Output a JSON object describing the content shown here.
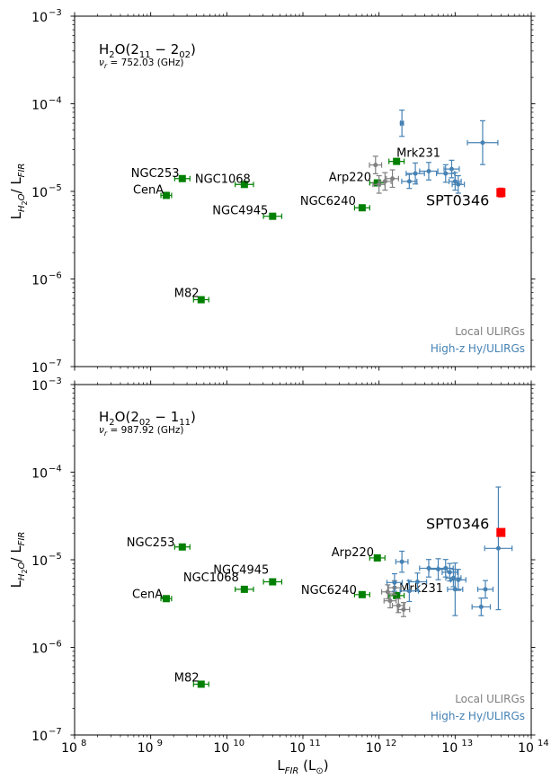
{
  "figure": {
    "xlabel": "L_FIR (L⊙)",
    "ylabel": "L_H2O/ L_FIR",
    "x_ticks": [
      {
        "exp": "8",
        "value": 100000000.0
      },
      {
        "exp": "9",
        "value": 1000000000.0
      },
      {
        "exp": "10",
        "value": 10000000000.0
      },
      {
        "exp": "11",
        "value": 100000000000.0
      },
      {
        "exp": "12",
        "value": 1000000000000.0
      },
      {
        "exp": "13",
        "value": 10000000000000.0
      },
      {
        "exp": "14",
        "value": 100000000000000.0
      }
    ],
    "y_ticks": [
      {
        "exp": "−7",
        "value": 1e-07
      },
      {
        "exp": "−6",
        "value": 1e-06
      },
      {
        "exp": "−5",
        "value": 1e-05
      },
      {
        "exp": "−4",
        "value": 0.0001
      },
      {
        "exp": "−3",
        "value": 0.001
      }
    ],
    "legend": {
      "local": "Local ULIRGs",
      "highz": "High-z Hy/ULIRGs"
    },
    "colors": {
      "nearby": "#008000",
      "local": "#808080",
      "highz": "#4682b4",
      "spt": "#ff0000"
    }
  },
  "chart_data": [
    {
      "type": "scatter",
      "title": "H2O(2_11 − 2_02)",
      "subtitle": "ν_r = 752.03 (GHz)",
      "x_scale": "log",
      "y_scale": "log",
      "xlim": [
        100000000.0,
        100000000000000.0
      ],
      "ylim": [
        1e-07,
        0.001
      ],
      "grid": false,
      "legend_position": "bottom-right",
      "series": [
        {
          "key": "nearby",
          "points": [
            {
              "label": "NGC253",
              "x": 2600000000.0,
              "y": 1.4e-05,
              "xerr": 0.1
            },
            {
              "label": "CenA",
              "x": 1600000000.0,
              "y": 9e-06,
              "xerr": 0.07
            },
            {
              "label": "NGC1068",
              "x": 17000000000.0,
              "y": 1.2e-05,
              "xerr": 0.12
            },
            {
              "label": "NGC4945",
              "x": 40000000000.0,
              "y": 5.2e-06,
              "xerr": 0.12
            },
            {
              "label": "M82",
              "x": 4600000000.0,
              "y": 5.8e-07,
              "xerr": 0.1
            },
            {
              "label": "NGC6240",
              "x": 600000000000.0,
              "y": 6.5e-06,
              "xerr": 0.1
            },
            {
              "label": "Arp220",
              "x": 950000000000.0,
              "y": 1.25e-05,
              "xerr": 0.1
            },
            {
              "label": "Mrk231",
              "x": 1700000000000.0,
              "y": 2.2e-05,
              "xerr": 0.1
            }
          ]
        },
        {
          "key": "local",
          "name": "Local ULIRGs",
          "points": [
            {
              "x": 900000000000.0,
              "y": 2e-05,
              "xerr": 0.08,
              "yerr": 0.1
            },
            {
              "x": 1200000000000.0,
              "y": 1.3e-05,
              "xerr": 0.08,
              "yerr": 0.1
            },
            {
              "x": 1500000000000.0,
              "y": 1.4e-05,
              "xerr": 0.08,
              "yerr": 0.1
            },
            {
              "x": 1000000000000.0,
              "y": 1.2e-05,
              "xerr": 0.08,
              "yerr": 0.1
            }
          ]
        },
        {
          "key": "highz",
          "name": "High-z Hy/ULIRGs",
          "points": [
            {
              "x": 2000000000000.0,
              "y": 6e-05,
              "xerr": 0.02,
              "yerr": 0.15
            },
            {
              "x": 3000000000000.0,
              "y": 1.6e-05,
              "xerr": 0.12,
              "yerr": 0.12
            },
            {
              "x": 4500000000000.0,
              "y": 1.7e-05,
              "xerr": 0.12,
              "yerr": 0.1
            },
            {
              "x": 7500000000000.0,
              "y": 1.6e-05,
              "xerr": 0.12,
              "yerr": 0.1
            },
            {
              "x": 9000000000000.0,
              "y": 1.8e-05,
              "xerr": 0.1,
              "yerr": 0.1
            },
            {
              "x": 10000000000000.0,
              "y": 1.3e-05,
              "xerr": 0.08,
              "yerr": 0.1
            },
            {
              "x": 11000000000000.0,
              "y": 1.2e-05,
              "xerr": 0.08,
              "yerr": 0.1
            },
            {
              "x": 23000000000000.0,
              "y": 3.6e-05,
              "xerr": 0.2,
              "yerr": 0.25
            },
            {
              "x": 2500000000000.0,
              "y": 1.3e-05,
              "xerr": 0.1,
              "yerr": 0.08
            }
          ]
        },
        {
          "key": "spt",
          "points": [
            {
              "label": "SPT0346",
              "x": 40000000000000.0,
              "y": 9.7e-06,
              "xerr": 0,
              "yerr": 0.05
            }
          ]
        }
      ]
    },
    {
      "type": "scatter",
      "title": "H2O(2_02 − 1_11)",
      "subtitle": "ν_r = 987.92 (GHz)",
      "x_scale": "log",
      "y_scale": "log",
      "xlim": [
        100000000.0,
        100000000000000.0
      ],
      "ylim": [
        1e-07,
        0.001
      ],
      "grid": false,
      "legend_position": "bottom-right",
      "series": [
        {
          "key": "nearby",
          "points": [
            {
              "label": "NGC253",
              "x": 2600000000.0,
              "y": 1.4e-05,
              "xerr": 0.1
            },
            {
              "label": "CenA",
              "x": 1600000000.0,
              "y": 3.6e-06,
              "xerr": 0.07
            },
            {
              "label": "NGC1068",
              "x": 17000000000.0,
              "y": 4.6e-06,
              "xerr": 0.12
            },
            {
              "label": "NGC4945",
              "x": 40000000000.0,
              "y": 5.6e-06,
              "xerr": 0.12
            },
            {
              "label": "M82",
              "x": 4600000000.0,
              "y": 3.8e-07,
              "xerr": 0.1
            },
            {
              "label": "NGC6240",
              "x": 600000000000.0,
              "y": 4e-06,
              "xerr": 0.1
            },
            {
              "label": "Arp220",
              "x": 950000000000.0,
              "y": 1.05e-05,
              "xerr": 0.1
            },
            {
              "label": "Mrk231",
              "x": 1700000000000.0,
              "y": 3.9e-06,
              "xerr": 0.1
            }
          ]
        },
        {
          "key": "local",
          "name": "Local ULIRGs",
          "points": [
            {
              "x": 1300000000000.0,
              "y": 4.3e-06,
              "xerr": 0.08,
              "yerr": 0.08
            },
            {
              "x": 1800000000000.0,
              "y": 3e-06,
              "xerr": 0.08,
              "yerr": 0.08
            },
            {
              "x": 2100000000000.0,
              "y": 2.7e-06,
              "xerr": 0.08,
              "yerr": 0.08
            },
            {
              "x": 1600000000000.0,
              "y": 4.8e-06,
              "xerr": 0.08,
              "yerr": 0.08
            },
            {
              "x": 1400000000000.0,
              "y": 3.4e-06,
              "xerr": 0.08,
              "yerr": 0.08
            }
          ]
        },
        {
          "key": "highz",
          "name": "High-z Hy/ULIRGs",
          "points": [
            {
              "x": 2000000000000.0,
              "y": 9.5e-06,
              "xerr": 0.08,
              "yerr": 0.12
            },
            {
              "x": 1600000000000.0,
              "y": 5.5e-06,
              "xerr": 0.1,
              "yerr": 0.1
            },
            {
              "x": 2500000000000.0,
              "y": 4.4e-06,
              "xerr": 0.12,
              "yerr": 0.12
            },
            {
              "x": 3200000000000.0,
              "y": 5.6e-06,
              "xerr": 0.12,
              "yerr": 0.1
            },
            {
              "x": 4500000000000.0,
              "y": 8e-06,
              "xerr": 0.12,
              "yerr": 0.1
            },
            {
              "x": 6000000000000.0,
              "y": 7.8e-06,
              "xerr": 0.12,
              "yerr": 0.12
            },
            {
              "x": 7500000000000.0,
              "y": 8e-06,
              "xerr": 0.1,
              "yerr": 0.1
            },
            {
              "x": 8500000000000.0,
              "y": 7.2e-06,
              "xerr": 0.1,
              "yerr": 0.1
            },
            {
              "x": 9500000000000.0,
              "y": 6.2e-06,
              "xerr": 0.1,
              "yerr": 0.1
            },
            {
              "x": 10000000000000.0,
              "y": 4.6e-06,
              "xerr": 0.1,
              "yerr": 0.3
            },
            {
              "x": 11000000000000.0,
              "y": 5.9e-06,
              "xerr": 0.1,
              "yerr": 0.12
            },
            {
              "x": 22000000000000.0,
              "y": 2.9e-06,
              "xerr": 0.12,
              "yerr": 0.1
            },
            {
              "x": 25000000000000.0,
              "y": 4.6e-06,
              "xerr": 0.1,
              "yerr": 0.1
            },
            {
              "x": 37000000000000.0,
              "y": 1.35e-05,
              "xerr": 0.18,
              "yerr": 0.7
            }
          ]
        },
        {
          "key": "spt",
          "points": [
            {
              "label": "SPT0346",
              "x": 40000000000000.0,
              "y": 2.05e-05,
              "xerr": 0,
              "yerr": 0.03
            }
          ]
        }
      ]
    }
  ]
}
